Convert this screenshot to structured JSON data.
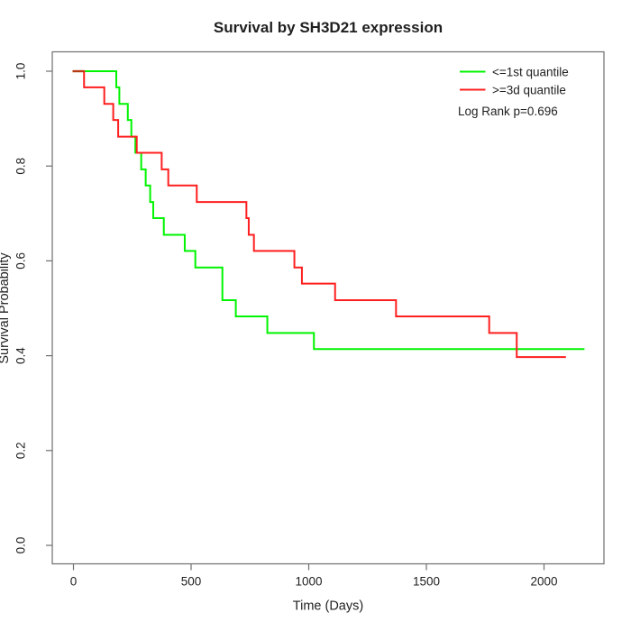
{
  "chart_data": {
    "type": "line",
    "subtype": "kaplan-meier-step",
    "title": "Survival by SH3D21 expression",
    "xlabel": "Time (Days)",
    "ylabel": "Survival Probability",
    "xlim": [
      0,
      2250
    ],
    "ylim": [
      0.0,
      1.0
    ],
    "x_ticks": [
      0,
      500,
      1000,
      1500,
      2000
    ],
    "y_ticks": [
      0.0,
      0.2,
      0.4,
      0.6,
      0.8,
      1.0
    ],
    "y_tick_labels": [
      "0.0",
      "0.2",
      "0.4",
      "0.6",
      "0.8",
      "1.0"
    ],
    "grid": false,
    "legend_position": "top-right",
    "annotation": "Log Rank p=0.696",
    "series": [
      {
        "name": "<=1st quantile",
        "color": "#00f400",
        "end_time": 2172,
        "steps": [
          {
            "t": 0,
            "s": 1.0
          },
          {
            "t": 182,
            "s": 0.966
          },
          {
            "t": 195,
            "s": 0.931
          },
          {
            "t": 231,
            "s": 0.897
          },
          {
            "t": 246,
            "s": 0.862
          },
          {
            "t": 263,
            "s": 0.828
          },
          {
            "t": 288,
            "s": 0.793
          },
          {
            "t": 307,
            "s": 0.759
          },
          {
            "t": 326,
            "s": 0.724
          },
          {
            "t": 339,
            "s": 0.69
          },
          {
            "t": 384,
            "s": 0.655
          },
          {
            "t": 473,
            "s": 0.621
          },
          {
            "t": 518,
            "s": 0.586
          },
          {
            "t": 633,
            "s": 0.517
          },
          {
            "t": 690,
            "s": 0.483
          },
          {
            "t": 824,
            "s": 0.448
          },
          {
            "t": 1022,
            "s": 0.414
          }
        ]
      },
      {
        "name": ">=3d quantile",
        "color": "#ff1f1f",
        "end_time": 2093,
        "steps": [
          {
            "t": 0,
            "s": 1.0
          },
          {
            "t": 45,
            "s": 0.966
          },
          {
            "t": 131,
            "s": 0.931
          },
          {
            "t": 169,
            "s": 0.897
          },
          {
            "t": 190,
            "s": 0.862
          },
          {
            "t": 269,
            "s": 0.828
          },
          {
            "t": 375,
            "s": 0.793
          },
          {
            "t": 403,
            "s": 0.759
          },
          {
            "t": 524,
            "s": 0.724
          },
          {
            "t": 735,
            "s": 0.69
          },
          {
            "t": 745,
            "s": 0.655
          },
          {
            "t": 767,
            "s": 0.621
          },
          {
            "t": 939,
            "s": 0.586
          },
          {
            "t": 971,
            "s": 0.552
          },
          {
            "t": 1112,
            "s": 0.517
          },
          {
            "t": 1371,
            "s": 0.483
          },
          {
            "t": 1767,
            "s": 0.448
          },
          {
            "t": 1884,
            "s": 0.397
          }
        ]
      }
    ],
    "overlap_segment": {
      "t_start": 0,
      "t_end": 45,
      "s": 1.0,
      "color": "#b63a12"
    }
  },
  "colors": {
    "axis_box": "#6f6f6f",
    "tick": "#6f6f6f",
    "text": "#1f1f1f"
  }
}
